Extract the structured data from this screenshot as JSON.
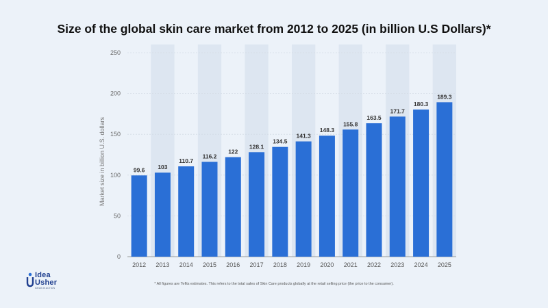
{
  "chart_data": {
    "type": "bar",
    "title": "Size of the global skin care market from 2012 to 2025 (in billion U.S Dollars)*",
    "xlabel": "",
    "ylabel": "Market size in billion U.S. dollars",
    "categories": [
      "2012",
      "2013",
      "2014",
      "2015",
      "2016",
      "2017",
      "2018",
      "2019",
      "2020",
      "2021",
      "2022",
      "2023",
      "2024",
      "2025"
    ],
    "values": [
      99.6,
      103,
      110.7,
      116.2,
      122,
      128.1,
      134.5,
      141.3,
      148.3,
      155.8,
      163.5,
      171.7,
      180.3,
      189.3
    ],
    "value_labels": [
      "99.6",
      "103",
      "110.7",
      "116.2",
      "122",
      "128.1",
      "134.5",
      "141.3",
      "148.3",
      "155.8",
      "163.5",
      "171.7",
      "180.3",
      "189.3"
    ],
    "yticks": [
      0,
      50,
      100,
      150,
      200,
      250
    ],
    "ylim": [
      0,
      250
    ],
    "bar_color": "#2a6fd6",
    "grid": true,
    "legend": "none"
  },
  "footnote": "* All figures are Tefits estimates. This refers to the total sales of Skin Care products globally at the retail selling price (the price to the consumer).",
  "logo": {
    "line1": "Idea",
    "line2": "Usher",
    "tagline": "IDEAS IN ACTION",
    "icon": "idea-usher-logo-icon"
  }
}
